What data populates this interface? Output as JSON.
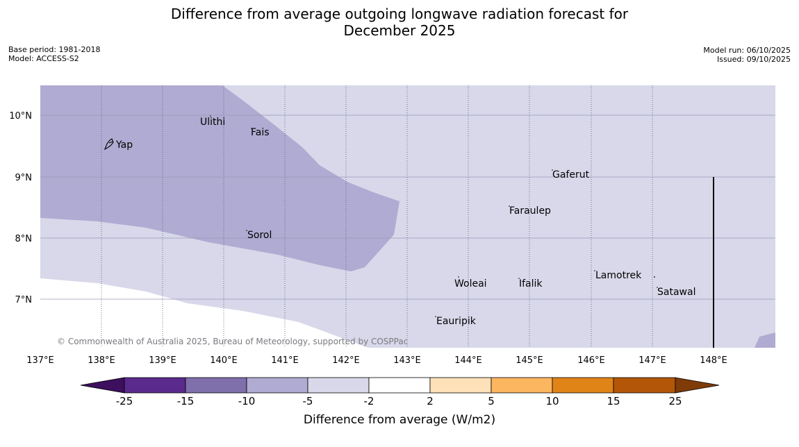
{
  "title": {
    "line1": "Difference from average outgoing longwave radiation forecast for",
    "line2": "December 2025"
  },
  "meta": {
    "base_period": "Base period: 1981-2018",
    "model": "Model: ACCESS-S2",
    "model_run": "Model run: 06/10/2025",
    "issued": "Issued: 09/10/2025"
  },
  "map": {
    "lat_ticks": [
      "10°N",
      "9°N",
      "8°N",
      "7°N"
    ],
    "lon_ticks": [
      "137°E",
      "138°E",
      "139°E",
      "140°E",
      "141°E",
      "142°E",
      "143°E",
      "144°E",
      "145°E",
      "146°E",
      "147°E",
      "148°E"
    ],
    "places": {
      "yap": "Yap",
      "ulithi": "Ulithi",
      "fais": "Fais",
      "gaferut": "Gaferut",
      "faraulep": "Faraulep",
      "sorol": "Sorol",
      "lamotrek": "Lamotrek",
      "woleai": "Woleai",
      "ifalik": "Ifalik",
      "satawal": "Satawal",
      "eauripik": "Eauripik"
    },
    "credit": "© Commonwealth of Australia 2025, Bureau of Meteorology, supported by COSPPac",
    "colors": {
      "band_-10_-5": "#b0abd2",
      "band_-5_-2": "#d8d8ea",
      "band_-2_2": "#ffffff"
    }
  },
  "colorbar": {
    "label": "Difference from average (W/m2)",
    "ticks": [
      "-25",
      "-15",
      "-10",
      "-5",
      "-2",
      "2",
      "5",
      "10",
      "15",
      "25"
    ],
    "colors": [
      "#3d0f5e",
      "#5a2a8c",
      "#7f6fab",
      "#b0abd2",
      "#d8d8ea",
      "#ffffff",
      "#fee1b8",
      "#fcb660",
      "#e08417",
      "#b35608",
      "#7f3b08"
    ]
  }
}
